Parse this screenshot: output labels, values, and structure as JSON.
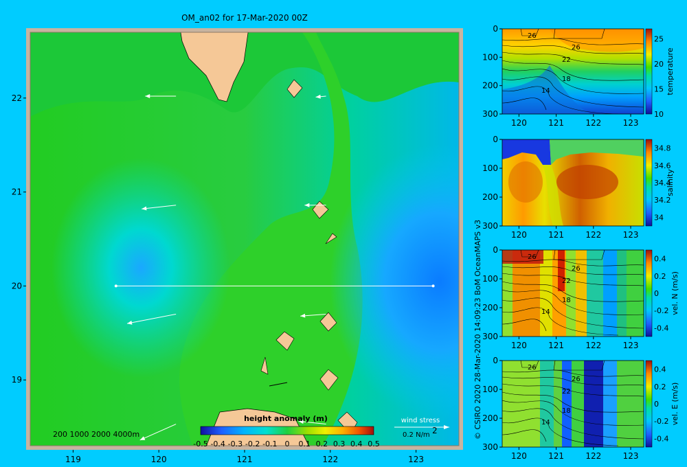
{
  "title": "OM_an02 for 17-Mar-2020 00Z",
  "credit": "© CSIRO 2020   28-Mar-2020 14:09:23 BoM OceanMAPS v3",
  "colors": {
    "background": "#00ccff",
    "land": "#f5c897",
    "border": "#c8b4a0"
  },
  "chart_data": [
    {
      "type": "heatmap",
      "name": "height-anomaly-map",
      "x_ticks": [
        "119",
        "120",
        "121",
        "122",
        "123"
      ],
      "y_ticks": [
        "22",
        "21",
        "20",
        "19"
      ],
      "xlim": [
        118.5,
        123.5
      ],
      "ylim": [
        18.3,
        22.7
      ],
      "colorbar_title": "height anomaly (m)",
      "colorbar_ticks": [
        "-0.5",
        "-0.4",
        "-0.3",
        "-0.2",
        "-0.1",
        "0",
        "0.1",
        "0.2",
        "0.3",
        "0.4",
        "0.5"
      ],
      "depth_contours": "200  1000  2000  4000m",
      "wind_stress_label": "wind stress",
      "wind_stress_scale": "0.2 N/m",
      "wind_stress_exp": "2",
      "section_line": {
        "lat": 20,
        "lon": [
          119.5,
          123.2
        ]
      },
      "wind_vectors": [
        {
          "lon": 120.2,
          "lat": 22.02,
          "dlon": -0.36,
          "dlat": 0.0
        },
        {
          "lon": 121.95,
          "lat": 22.02,
          "dlon": -0.12,
          "dlat": -0.01
        },
        {
          "lon": 120.2,
          "lat": 20.86,
          "dlon": -0.4,
          "dlat": -0.04
        },
        {
          "lon": 121.95,
          "lat": 20.86,
          "dlon": -0.25,
          "dlat": 0.0
        },
        {
          "lon": 120.2,
          "lat": 19.7,
          "dlon": -0.57,
          "dlat": -0.1
        },
        {
          "lon": 121.95,
          "lat": 19.7,
          "dlon": -0.3,
          "dlat": -0.02
        },
        {
          "lon": 120.2,
          "lat": 18.53,
          "dlon": -0.42,
          "dlat": -0.17
        },
        {
          "lon": 121.95,
          "lat": 18.53,
          "dlon": -0.32,
          "dlat": 0.03
        }
      ],
      "field_levels": [
        {
          "value": -0.3,
          "description": "deep blue low near 123.2E 20N"
        }
      ]
    },
    {
      "type": "heatmap",
      "name": "temperature-section",
      "colorbar_label": "temperature",
      "x_ticks": [
        "120",
        "121",
        "122",
        "123"
      ],
      "y_ticks": [
        "0",
        "100",
        "200",
        "300"
      ],
      "colorbar_ticks": [
        "25",
        "20",
        "15",
        "10"
      ],
      "contour_labels": [
        "26",
        "26",
        "22",
        "18",
        "14"
      ]
    },
    {
      "type": "heatmap",
      "name": "salinity-section",
      "colorbar_label": "salinity",
      "x_ticks": [
        "120",
        "121",
        "122",
        "123"
      ],
      "y_ticks": [
        "0",
        "100",
        "200",
        "300"
      ],
      "colorbar_ticks": [
        "34.8",
        "34.6",
        "34.4",
        "34.2",
        "34"
      ]
    },
    {
      "type": "heatmap",
      "name": "vel-n-section",
      "colorbar_label": "vel. N (m/s)",
      "x_ticks": [
        "120",
        "121",
        "122",
        "123"
      ],
      "y_ticks": [
        "0",
        "100",
        "200",
        "300"
      ],
      "colorbar_ticks": [
        "0.4",
        "0.2",
        "0",
        "-0.2",
        "-0.4"
      ],
      "contour_labels": [
        "26",
        "26",
        "22",
        "18",
        "14"
      ]
    },
    {
      "type": "heatmap",
      "name": "vel-e-section",
      "colorbar_label": "vel. E (m/s)",
      "x_ticks": [
        "120",
        "121",
        "122",
        "123"
      ],
      "y_ticks": [
        "0",
        "100",
        "200",
        "300"
      ],
      "colorbar_ticks": [
        "0.4",
        "0.2",
        "0",
        "-0.2",
        "-0.4"
      ],
      "contour_labels": [
        "26",
        "26",
        "22",
        "18",
        "14"
      ]
    }
  ]
}
